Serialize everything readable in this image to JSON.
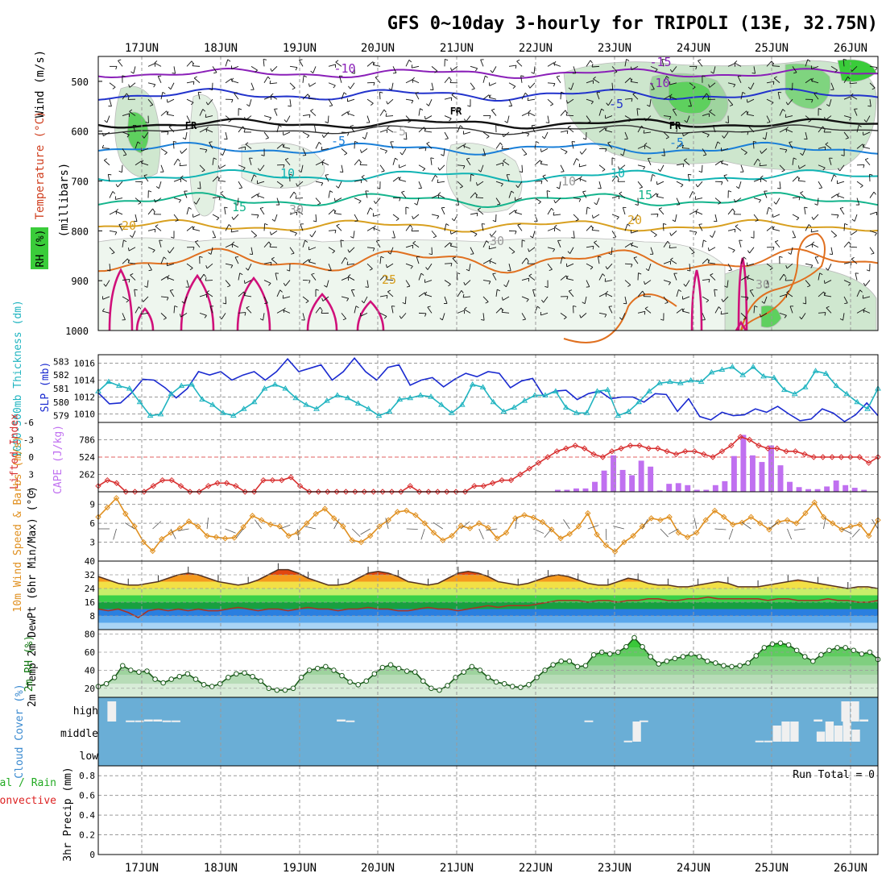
{
  "title": "GFS 0~10day 3-hourly for TRIPOLI (13E, 32.75N)",
  "dates": [
    "17JUN",
    "18JUN",
    "19JUN",
    "20JUN",
    "21JUN",
    "22JUN",
    "23JUN",
    "24JUN",
    "25JUN",
    "26JUN"
  ],
  "colors": {
    "grid": "#9a9a9a",
    "purple": "#8a1fb8",
    "blue1": "#2233cc",
    "blue2": "#1a7fd8",
    "teal": "#11b4b4",
    "green": "#14b48c",
    "gold": "#d8a020",
    "orange": "#e07020",
    "magenta": "#d0107a",
    "slp": "#1a2ad0",
    "thick": "#20b4c0",
    "li": "#d83030",
    "cape": "#c070f0",
    "wind": "#e09020",
    "cloudbg": "#6aaed6"
  },
  "panels": {
    "upper": {
      "ylabel_wind": "Wind (m/s)",
      "ylabel_temp": "Temperature (°C)",
      "ylabel_rh": "RH (%)",
      "ylabel_mb": "(millibars)",
      "levels": [
        "500",
        "600",
        "700",
        "800",
        "900",
        "1000"
      ],
      "isotherm_labels": [
        "-15",
        "-10",
        "-10",
        "-5",
        "-5",
        "FR",
        "FR",
        "FR",
        "-5",
        "-5",
        "10",
        "10",
        "15",
        "15",
        "20",
        "20",
        "25",
        "30",
        "30",
        "30",
        "10"
      ]
    },
    "slp": {
      "ylabel_left": "1000-500mb Thickness (dm)",
      "ylabel_right": "SLP (mb)",
      "left_ticks": [
        "583",
        "582",
        "581",
        "580",
        "579"
      ],
      "right_ticks": [
        "1016",
        "1014",
        "1012",
        "1010"
      ]
    },
    "cape": {
      "ylabel_left": "Lifted Index",
      "ylabel_right": "CAPE (J/kg)",
      "left_ticks": [
        "-6",
        "-3",
        "0",
        "3",
        "6"
      ],
      "right_ticks": [
        "786",
        "524",
        "262"
      ]
    },
    "wind": {
      "ylabel": "10m Wind Speed & Barbs (m/s)",
      "ticks": [
        "9",
        "6",
        "3"
      ]
    },
    "temp": {
      "ylabel": "2m Temp 2m DewPt (6hr Min/Max) (°C)",
      "ticks": [
        "40",
        "32",
        "24",
        "16",
        "8"
      ]
    },
    "rh": {
      "ylabel": "2m RH (%)",
      "ticks": [
        "80",
        "60",
        "40",
        "20"
      ]
    },
    "cloud": {
      "ylabel": "Cloud Cover (%)",
      "levels": [
        "high",
        "middle",
        "low"
      ]
    },
    "precip": {
      "ylabel_total": "Total / Rain",
      "ylabel_conv": "Convective",
      "ylabel": "3hr Precip (mm)",
      "ticks": [
        "0.8",
        "0.6",
        "0.4",
        "0.2",
        "0"
      ],
      "run_total": "Run Total = 0"
    }
  },
  "chart_data": [
    {
      "type": "line",
      "title": "1000-500mb Thickness (dm) / SLP (mb)",
      "series": [
        {
          "name": "SLP (mb)",
          "values": [
            1012.5,
            1011.2,
            1011.3,
            1012.5,
            1014.1,
            1014.0,
            1013.1,
            1011.9,
            1013.0,
            1015.0,
            1014.6,
            1015.0,
            1014.0,
            1014.6,
            1015.0,
            1014.0,
            1015.0,
            1016.5,
            1015.0,
            1015.4,
            1015.8,
            1014.0,
            1015.0,
            1016.6,
            1015.0,
            1014.0,
            1015.5,
            1015.8,
            1013.4,
            1014.0,
            1014.3,
            1013.2,
            1014.1,
            1014.8,
            1014.4,
            1015.0,
            1014.8,
            1013.1,
            1013.9,
            1014.2,
            1012.1,
            1012.7,
            1012.8,
            1011.7,
            1012.4,
            1012.7,
            1011.8,
            1012.0,
            1012.0,
            1011.4,
            1012.4,
            1012.3,
            1010.3,
            1011.8,
            1009.7,
            1009.3,
            1010.2,
            1009.8,
            1009.9,
            1010.6,
            1010.2,
            1010.9,
            1010.0,
            1009.2,
            1009.4,
            1010.6,
            1010.1,
            1009.1,
            1009.9,
            1011.3,
            1009.8
          ]
        },
        {
          "name": "1000-500mb Thickness (dm)",
          "values": [
            580.8,
            581.5,
            581.2,
            581.0,
            580.0,
            579.0,
            579.1,
            580.6,
            581.2,
            581.3,
            580.2,
            579.8,
            579.2,
            579.0,
            579.5,
            580.0,
            581.0,
            581.3,
            581.0,
            580.3,
            579.8,
            579.5,
            580.1,
            580.5,
            580.3,
            579.9,
            579.5,
            579.0,
            579.3,
            580.2,
            580.3,
            580.5,
            580.4,
            579.8,
            579.2,
            579.8,
            581.3,
            581.1,
            580.0,
            579.3,
            579.6,
            580.1,
            580.5,
            580.5,
            580.8,
            579.6,
            579.2,
            579.2,
            580.8,
            580.9,
            579.0,
            579.3,
            580.0,
            580.8,
            581.4,
            581.5,
            581.4,
            581.6,
            581.5,
            582.2,
            582.4,
            582.6,
            582.0,
            582.6,
            581.9,
            581.8,
            580.9,
            580.6,
            581.1,
            582.3,
            582.1,
            581.2,
            580.6,
            580.0,
            579.5,
            581.0
          ]
        }
      ],
      "ylim_slp": [
        1009,
        1017
      ],
      "ylim_thickness": [
        578.5,
        583.5
      ]
    },
    {
      "type": "bar",
      "title": "Lifted Index / CAPE (J/kg)",
      "series": [
        {
          "name": "CAPE (J/kg)",
          "values": [
            0,
            0,
            0,
            0,
            0,
            0,
            0,
            0,
            0,
            0,
            0,
            0,
            0,
            0,
            0,
            0,
            0,
            0,
            0,
            0,
            0,
            0,
            0,
            0,
            0,
            0,
            0,
            0,
            0,
            0,
            0,
            0,
            0,
            0,
            0,
            0,
            0,
            0,
            0,
            0,
            0,
            0,
            0,
            0,
            0,
            0,
            0,
            0,
            0,
            30,
            30,
            50,
            50,
            150,
            320,
            550,
            330,
            250,
            470,
            380,
            20,
            120,
            130,
            100,
            30,
            30,
            100,
            160,
            540,
            860,
            550,
            450,
            700,
            400,
            150,
            70,
            40,
            40,
            80,
            170,
            100,
            60,
            30,
            0
          ]
        },
        {
          "name": "Lifted Index",
          "values": [
            5,
            4,
            4.5,
            6,
            6,
            6,
            5,
            4,
            4,
            5,
            6,
            6,
            5,
            4.5,
            4.5,
            5,
            6,
            6,
            4,
            4,
            4,
            3.5,
            5,
            6,
            6,
            6,
            6,
            6,
            6,
            6,
            6,
            6,
            6,
            6,
            5,
            6,
            6,
            6,
            6,
            6,
            6,
            5,
            5,
            4.5,
            4,
            4,
            3,
            2,
            1,
            0,
            -1,
            -1.5,
            -2,
            -1.5,
            -0.5,
            0,
            -1,
            -1.5,
            -2,
            -2,
            -1.5,
            -1.5,
            -1,
            -0.5,
            -1,
            -1,
            -0.5,
            0,
            -1,
            -2,
            -3.5,
            -3,
            -2,
            -1.5,
            -1.5,
            -1,
            -1,
            -0.5,
            0,
            0,
            0,
            0,
            0,
            0,
            1,
            0
          ]
        }
      ],
      "ylim_cape": [
        0,
        1048
      ],
      "ylim_li": [
        6,
        -6
      ]
    },
    {
      "type": "line",
      "title": "10m Wind Speed & Barbs (m/s)",
      "series": [
        {
          "name": "10m Wind Speed (m/s)",
          "values": [
            7.0,
            8.5,
            10.0,
            7.5,
            5.5,
            3.0,
            1.6,
            3.5,
            4.5,
            5.2,
            6.3,
            5.5,
            4.0,
            3.8,
            3.6,
            3.7,
            5.4,
            7.2,
            6.5,
            5.8,
            5.5,
            4.0,
            4.5,
            6.0,
            7.5,
            8.3,
            6.8,
            5.5,
            3.3,
            3.0,
            4.0,
            5.5,
            6.5,
            7.8,
            8.0,
            7.3,
            6.0,
            4.5,
            3.3,
            4.0,
            5.6,
            5.2,
            6.0,
            5.3,
            3.6,
            4.5,
            6.8,
            7.3,
            6.9,
            6.2,
            5.0,
            3.6,
            4.3,
            5.5,
            7.6,
            4.2,
            2.5,
            1.5,
            3.0,
            4.0,
            5.5,
            6.8,
            6.5,
            7.0,
            4.5,
            3.8,
            4.5,
            6.5,
            8.0,
            7.0,
            5.8,
            6.1,
            7.0,
            6.0,
            5.0,
            6.2,
            6.5,
            6.0,
            7.6,
            9.3,
            7.0,
            6.0,
            5.0,
            5.5,
            5.8,
            4.0,
            6.5
          ]
        }
      ],
      "ylim": [
        0,
        11
      ]
    },
    {
      "type": "area",
      "title": "2m Temp 2m DewPt (6hr Min/Max) (°C)",
      "series": [
        {
          "name": "2m Temp",
          "values": [
            31,
            29,
            27,
            26,
            26,
            27,
            28,
            30,
            32,
            33,
            32,
            30,
            28,
            27,
            26,
            27,
            29,
            32,
            35,
            35,
            33,
            30,
            28,
            26,
            26,
            27,
            30,
            33,
            34,
            33,
            31,
            28,
            27,
            26,
            27,
            30,
            33,
            34,
            33,
            31,
            28,
            27,
            26,
            27,
            29,
            31,
            32,
            31,
            29,
            27,
            26,
            26,
            28,
            30,
            29,
            27,
            26,
            26,
            25,
            25,
            26,
            27,
            28,
            27,
            25,
            25,
            25,
            26,
            27,
            28,
            29,
            28,
            27,
            26,
            25,
            24,
            25,
            25,
            24
          ]
        },
        {
          "name": "2m DewPt",
          "values": [
            12,
            11,
            12,
            10,
            7,
            11,
            12,
            11,
            12,
            11,
            12,
            11,
            11,
            12,
            13,
            12,
            11,
            12,
            12,
            11,
            12,
            13,
            12,
            12,
            11,
            12,
            12,
            13,
            12,
            12,
            11,
            11,
            12,
            13,
            12,
            12,
            11,
            12,
            13,
            14,
            13,
            14,
            14,
            14,
            15,
            16,
            17,
            17,
            17,
            16,
            17,
            17,
            16,
            17,
            17,
            18,
            18,
            17,
            17,
            18,
            18,
            19,
            18,
            18,
            18,
            18,
            18,
            17,
            18,
            18,
            17,
            17,
            17,
            18,
            17,
            17,
            16,
            16,
            17
          ]
        }
      ],
      "ylim": [
        0,
        40
      ]
    },
    {
      "type": "area",
      "title": "2m RH (%)",
      "series": [
        {
          "name": "2m RH (%)",
          "values": [
            22,
            25,
            32,
            45,
            40,
            38,
            39,
            30,
            26,
            30,
            33,
            36,
            30,
            24,
            22,
            25,
            32,
            36,
            37,
            33,
            28,
            20,
            18,
            18,
            20,
            32,
            40,
            42,
            44,
            40,
            34,
            27,
            24,
            28,
            36,
            43,
            46,
            42,
            39,
            38,
            28,
            20,
            18,
            23,
            32,
            38,
            44,
            40,
            32,
            27,
            25,
            22,
            21,
            24,
            32,
            40,
            46,
            50,
            50,
            44,
            45,
            57,
            60,
            58,
            60,
            66,
            76,
            66,
            55,
            47,
            50,
            53,
            55,
            58,
            55,
            50,
            48,
            45,
            44,
            45,
            48,
            56,
            65,
            69,
            70,
            68,
            62,
            55,
            50,
            57,
            62,
            65,
            65,
            62,
            58,
            60,
            52
          ]
        }
      ],
      "ylim": [
        10,
        85
      ]
    },
    {
      "type": "bar",
      "title": "Cloud Cover (%)",
      "series": [
        {
          "name": "high",
          "values": [
            0,
            100,
            0,
            5,
            5,
            10,
            10,
            5,
            5,
            0,
            0,
            0,
            0,
            0,
            0,
            0,
            0,
            0,
            0,
            0,
            0,
            0,
            0,
            0,
            0,
            0,
            10,
            5,
            0,
            0,
            0,
            0,
            0,
            0,
            0,
            0,
            0,
            0,
            0,
            0,
            0,
            0,
            0,
            0,
            0,
            0,
            0,
            0,
            0,
            0,
            0,
            0,
            0,
            5,
            0,
            0,
            0,
            0,
            0,
            5,
            0,
            0,
            0,
            0,
            0,
            0,
            0,
            0,
            0,
            0,
            0,
            0,
            0,
            0,
            0,
            0,
            0,
            0,
            10,
            0,
            0,
            100,
            100,
            10,
            0
          ]
        },
        {
          "name": "middle",
          "values": [
            0,
            0,
            0,
            0,
            0,
            0,
            0,
            0,
            0,
            0,
            0,
            0,
            0,
            0,
            0,
            0,
            0,
            0,
            0,
            0,
            0,
            0,
            0,
            0,
            0,
            0,
            0,
            0,
            0,
            0,
            0,
            0,
            0,
            0,
            0,
            0,
            0,
            0,
            0,
            0,
            0,
            0,
            0,
            0,
            0,
            0,
            0,
            0,
            0,
            0,
            0,
            0,
            0,
            0,
            0,
            0,
            0,
            0,
            0,
            0,
            5,
            100,
            0,
            0,
            0,
            0,
            0,
            0,
            0,
            0,
            0,
            0,
            0,
            0,
            0,
            5,
            5,
            80,
            100,
            100,
            0,
            0,
            50,
            100,
            80,
            100,
            60,
            0,
            0
          ]
        },
        {
          "name": "low",
          "values": [
            0,
            0,
            0,
            0,
            0,
            0,
            0,
            0,
            0,
            0,
            0,
            0,
            0,
            0,
            0,
            0,
            0,
            0,
            0,
            0,
            0,
            0,
            0,
            0,
            0,
            0,
            0,
            0,
            0,
            0,
            0,
            0,
            0,
            0,
            0,
            0,
            0,
            0,
            0,
            0,
            0,
            0,
            0,
            0,
            0,
            0,
            0,
            0,
            0,
            0,
            0,
            0,
            0,
            0,
            0,
            0,
            0,
            0,
            0,
            0,
            0,
            0,
            0,
            0,
            0,
            0,
            0,
            0,
            0,
            0,
            0,
            0,
            0,
            0,
            0,
            0,
            0,
            0,
            0,
            0,
            0,
            0,
            0,
            0,
            0,
            0,
            0,
            0,
            0
          ]
        }
      ]
    },
    {
      "type": "bar",
      "title": "3hr Precip (mm)",
      "series": [
        {
          "name": "3hr Precip (mm)",
          "values": []
        }
      ],
      "ylim": [
        0,
        0.9
      ],
      "annotation": "Run Total = 0"
    }
  ]
}
